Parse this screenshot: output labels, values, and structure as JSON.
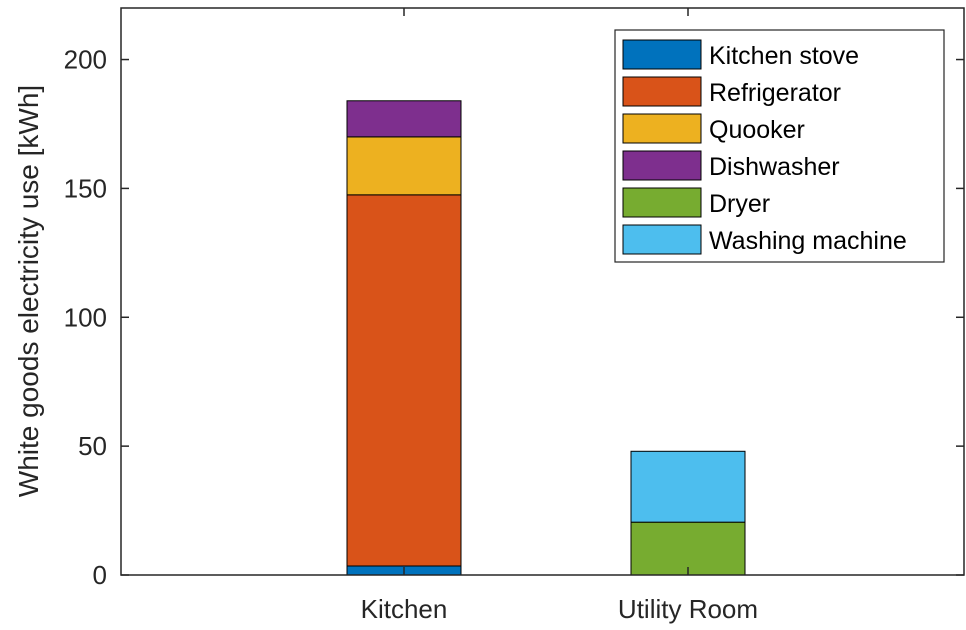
{
  "chart_data": {
    "type": "bar",
    "stacked": true,
    "categories": [
      "Kitchen",
      "Utility Room"
    ],
    "ylabel": "White goods electricity use [kWh]",
    "xlabel": "",
    "ylim": [
      0,
      220
    ],
    "yticks": [
      0,
      50,
      100,
      150,
      200
    ],
    "grid": false,
    "legend_position": "top-right",
    "series": [
      {
        "name": "Kitchen stove",
        "color": "#0072BD",
        "values": [
          3.5,
          0
        ]
      },
      {
        "name": "Refrigerator",
        "color": "#D95319",
        "values": [
          144,
          0
        ]
      },
      {
        "name": "Quooker",
        "color": "#EDB120",
        "values": [
          22.5,
          0
        ]
      },
      {
        "name": "Dishwasher",
        "color": "#7E2F8E",
        "values": [
          14,
          0
        ]
      },
      {
        "name": "Dryer",
        "color": "#77AC30",
        "values": [
          0,
          20.5
        ]
      },
      {
        "name": "Washing machine",
        "color": "#4DBEEE",
        "values": [
          0,
          27.5
        ]
      }
    ]
  }
}
